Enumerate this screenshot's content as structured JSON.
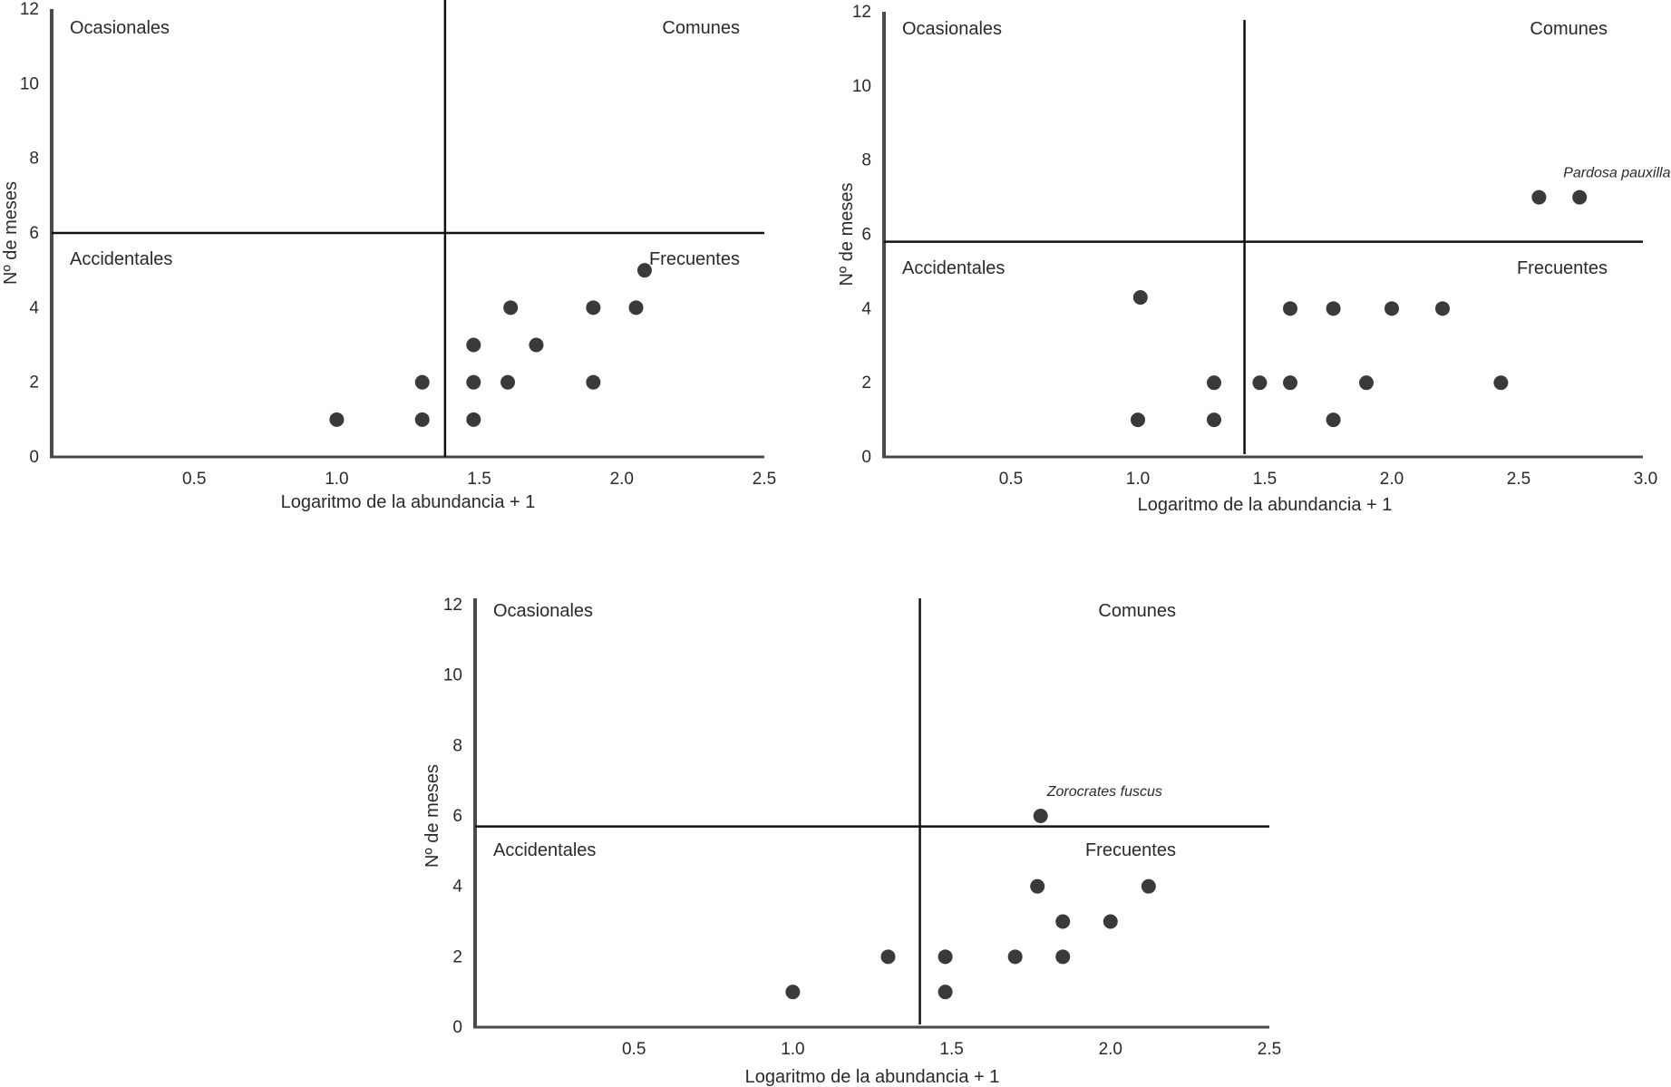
{
  "colors": {
    "axis": "#4a4a4a",
    "divider": "#111111",
    "point": "#3a3a3a",
    "text": "#2a2a2a"
  },
  "chart_data": [
    {
      "type": "scatter",
      "title": "",
      "xlabel": "Logaritmo de la abundancia + 1",
      "ylabel": "Nº de meses",
      "xlim": [
        0,
        2.5
      ],
      "ylim": [
        0,
        12
      ],
      "x_ticks": [
        "0.5",
        "1.0",
        "1.5",
        "2.0",
        "2.5"
      ],
      "y_ticks": [
        "0",
        "2",
        "4",
        "6",
        "8",
        "10",
        "12"
      ],
      "divider_x": 1.38,
      "divider_y": 6.0,
      "quadrants": {
        "top_left": "Ocasionales",
        "top_right": "Comunes",
        "bottom_left": "Accidentales",
        "bottom_right": "Frecuentes"
      },
      "points": [
        {
          "x": 1.0,
          "y": 1
        },
        {
          "x": 1.3,
          "y": 1
        },
        {
          "x": 1.3,
          "y": 2
        },
        {
          "x": 1.48,
          "y": 1
        },
        {
          "x": 1.48,
          "y": 2
        },
        {
          "x": 1.48,
          "y": 3
        },
        {
          "x": 1.6,
          "y": 2
        },
        {
          "x": 1.61,
          "y": 4
        },
        {
          "x": 1.7,
          "y": 3
        },
        {
          "x": 1.9,
          "y": 2
        },
        {
          "x": 1.9,
          "y": 4
        },
        {
          "x": 2.05,
          "y": 4
        },
        {
          "x": 2.08,
          "y": 5
        }
      ],
      "annotations": []
    },
    {
      "type": "scatter",
      "title": "",
      "xlabel": "Logaritmo de la abundancia + 1",
      "ylabel": "Nº de meses",
      "xlim": [
        0,
        3.0
      ],
      "ylim": [
        0,
        12
      ],
      "x_ticks": [
        "0.5",
        "1.0",
        "1.5",
        "2.0",
        "2.5",
        "3.0"
      ],
      "y_ticks": [
        "0",
        "2",
        "4",
        "6",
        "8",
        "10",
        "12"
      ],
      "divider_x": 1.42,
      "divider_y": 5.8,
      "quadrants": {
        "top_left": "Ocasionales",
        "top_right": "Comunes",
        "bottom_left": "Accidentales",
        "bottom_right": "Frecuentes"
      },
      "points": [
        {
          "x": 1.0,
          "y": 1
        },
        {
          "x": 1.01,
          "y": 4.3
        },
        {
          "x": 1.3,
          "y": 1
        },
        {
          "x": 1.3,
          "y": 2
        },
        {
          "x": 1.48,
          "y": 2
        },
        {
          "x": 1.6,
          "y": 2
        },
        {
          "x": 1.6,
          "y": 4
        },
        {
          "x": 1.77,
          "y": 1
        },
        {
          "x": 1.77,
          "y": 4
        },
        {
          "x": 1.9,
          "y": 2
        },
        {
          "x": 2.0,
          "y": 4
        },
        {
          "x": 2.2,
          "y": 4
        },
        {
          "x": 2.43,
          "y": 2
        },
        {
          "x": 2.58,
          "y": 7
        },
        {
          "x": 2.74,
          "y": 7
        }
      ],
      "annotations": [
        {
          "text": "Pardosa pauxilla",
          "x": 2.74,
          "y": 7
        }
      ]
    },
    {
      "type": "scatter",
      "title": "",
      "xlabel": "Logaritmo de la abundancia + 1",
      "ylabel": "Nº de meses",
      "xlim": [
        0,
        2.5
      ],
      "ylim": [
        0,
        12
      ],
      "x_ticks": [
        "0.5",
        "1.0",
        "1.5",
        "2.0",
        "2.5"
      ],
      "y_ticks": [
        "0",
        "2",
        "4",
        "6",
        "8",
        "10",
        "12"
      ],
      "divider_x": 1.4,
      "divider_y": 5.7,
      "quadrants": {
        "top_left": "Ocasionales",
        "top_right": "Comunes",
        "bottom_left": "Accidentales",
        "bottom_right": "Frecuentes"
      },
      "points": [
        {
          "x": 1.0,
          "y": 1
        },
        {
          "x": 1.3,
          "y": 2
        },
        {
          "x": 1.48,
          "y": 1
        },
        {
          "x": 1.48,
          "y": 2
        },
        {
          "x": 1.7,
          "y": 2
        },
        {
          "x": 1.77,
          "y": 4
        },
        {
          "x": 1.78,
          "y": 6
        },
        {
          "x": 1.85,
          "y": 2
        },
        {
          "x": 1.85,
          "y": 3
        },
        {
          "x": 2.0,
          "y": 3
        },
        {
          "x": 2.12,
          "y": 4
        }
      ],
      "annotations": [
        {
          "text": "Zorocrates fuscus",
          "x": 1.78,
          "y": 6
        }
      ]
    }
  ]
}
